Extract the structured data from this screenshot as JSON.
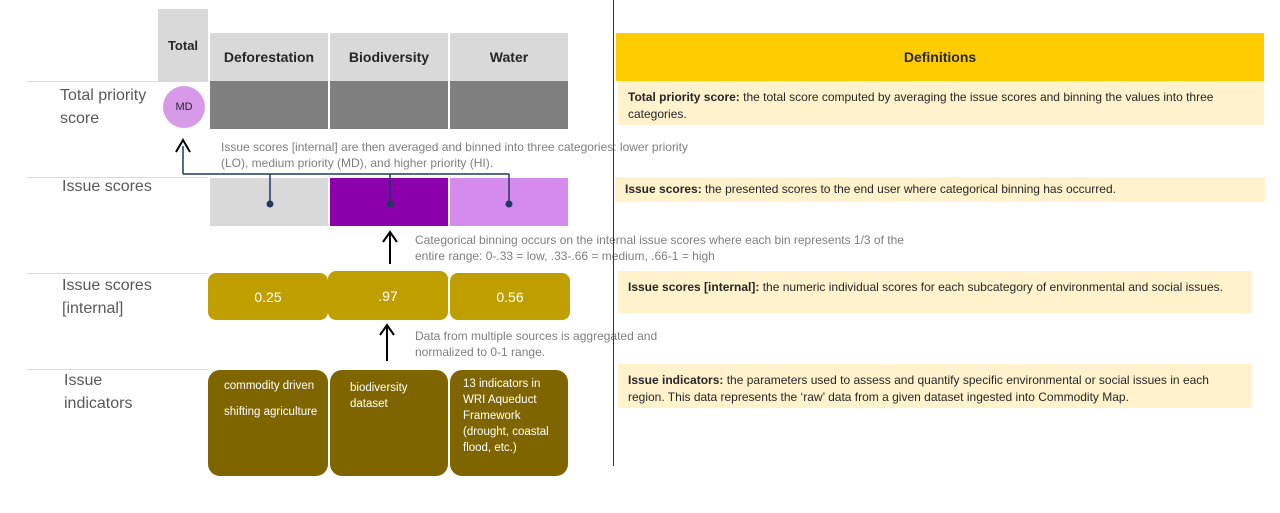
{
  "columns": {
    "total": "Total",
    "deforestation": "Deforestation",
    "biodiversity": "Biodiversity",
    "water": "Water"
  },
  "rows": {
    "total_priority_score": "Total priority score",
    "issue_scores": "Issue scores",
    "issue_scores_internal": "Issue scores [internal]",
    "issue_indicators": "Issue indicators"
  },
  "total_badge": "MD",
  "colors": {
    "header_gray": "#d9d9d9",
    "dark_gray": "#7f7f7f",
    "badge_md": "#d79ae8",
    "score_lo": "#d9d9d9",
    "score_hi": "#8b00aa",
    "score_md": "#d58bee",
    "internal_gold": "#bf9f00",
    "indicator_olive": "#7f6500",
    "definitions_header": "#ffcc00",
    "definitions_bg": "#fff2cc"
  },
  "notes": {
    "binning_to_total": "Issue scores [internal] are then  averaged and binned into three categories: lower priority (LO), medium priority (MD), and higher priority (HI).",
    "categorical_binning": "Categorical binning occurs on the internal issue scores where each bin represents 1/3 of the entire range:  0-.33 = low, .33-.66 = medium, .66-1 = high",
    "aggregation": "Data from multiple sources is aggregated and normalized to 0-1 range."
  },
  "internal_scores": {
    "deforestation": "0.25",
    "biodiversity": ".97",
    "water": "0.56"
  },
  "indicators": {
    "deforestation_1": "commodity driven",
    "deforestation_2": "shifting agriculture",
    "biodiversity": "biodiversity dataset",
    "water": "13 indicators in WRI Aqueduct Framework (drought, coastal flood, etc.)"
  },
  "definitions": {
    "header": "Definitions",
    "total_term": "Total priority score:",
    "total_text": " the total score computed by averaging the issue scores and binning the values into three categories.",
    "issue_term": "Issue scores:",
    "issue_text": " the presented scores to the end user where categorical binning has occurred.",
    "internal_term": "Issue scores [internal]:",
    "internal_text": "  the numeric individual  scores for each subcategory of environmental and social issues.",
    "indicators_term": "Issue indicators:",
    "indicators_text": " the parameters used to assess and quantify specific environmental or social issues in each region. This data represents the ‘raw’ data from a given dataset ingested into Commodity  Map."
  }
}
